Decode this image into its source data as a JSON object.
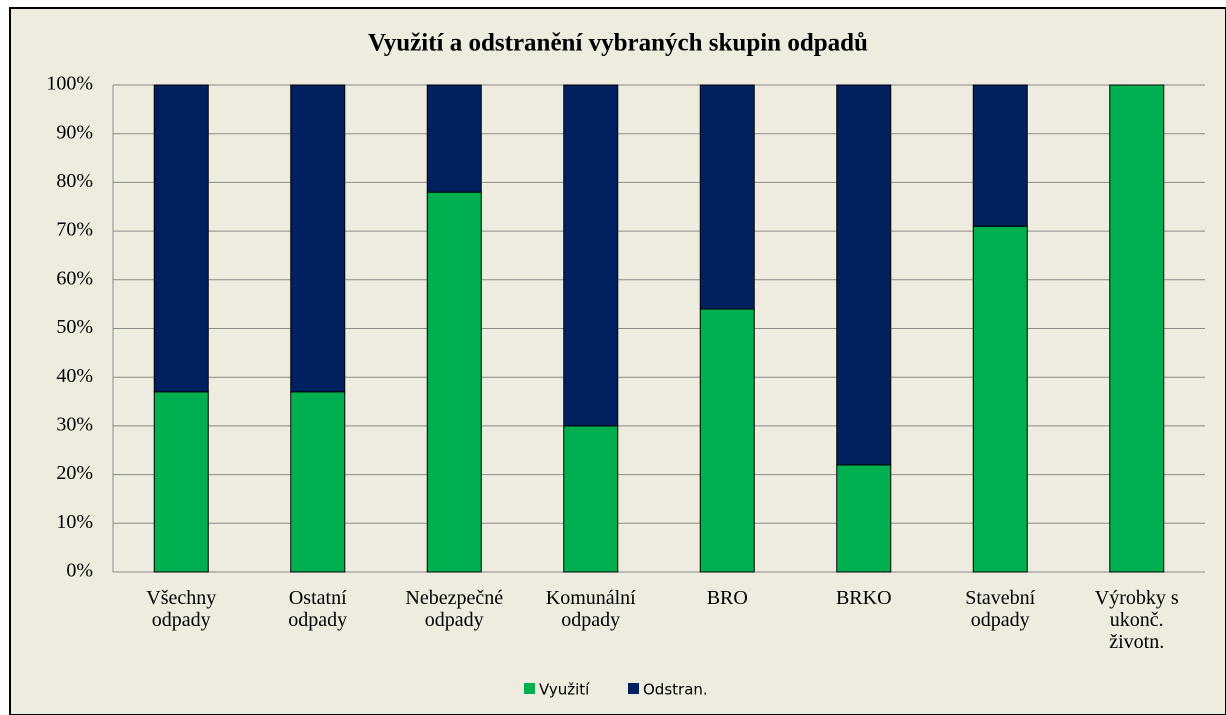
{
  "chart_data": {
    "type": "stacked_bar",
    "title": "Využití a odstranění vybraných skupin odpadů",
    "categories": [
      "Všechny\nodpady",
      "Ostatní\nodpady",
      "Nebezpečné\nodpady",
      "Komunální\nodpady",
      "BRO",
      "BRKO",
      "Stavební\nodpady",
      "Výrobky s\nukonč.\nživotn."
    ],
    "series": [
      {
        "name": "Využití",
        "color": "#00b050",
        "values": [
          37,
          37,
          78,
          30,
          54,
          22,
          71,
          100
        ]
      },
      {
        "name": "Odstran.",
        "color": "#002060",
        "values": [
          63,
          63,
          22,
          70,
          46,
          78,
          29,
          0
        ]
      }
    ],
    "ylim": [
      0,
      100
    ],
    "yticks": [
      {
        "value": 0,
        "label": "0%"
      },
      {
        "value": 10,
        "label": "10%"
      },
      {
        "value": 20,
        "label": "20%"
      },
      {
        "value": 30,
        "label": "30%"
      },
      {
        "value": 40,
        "label": "40%"
      },
      {
        "value": 50,
        "label": "50%"
      },
      {
        "value": 60,
        "label": "60%"
      },
      {
        "value": 70,
        "label": "70%"
      },
      {
        "value": 80,
        "label": "80%"
      },
      {
        "value": 90,
        "label": "90%"
      },
      {
        "value": 100,
        "label": "100%"
      }
    ],
    "grid": true,
    "legend": "bottom"
  }
}
